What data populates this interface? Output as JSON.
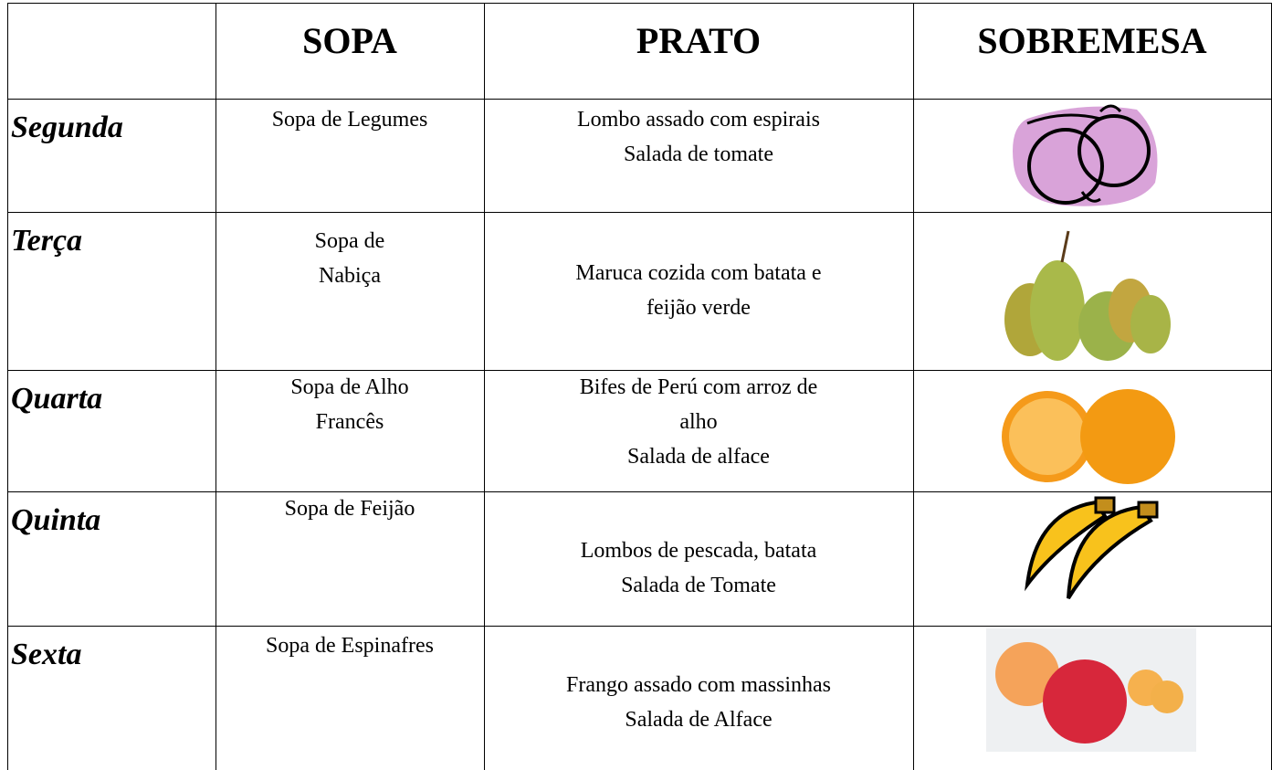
{
  "header": {
    "columns": [
      "SOPA",
      "PRATO",
      "SOBREMESA"
    ]
  },
  "rows": [
    {
      "day": "Segunda",
      "sopa": [
        "Sopa de Legumes"
      ],
      "prato": [
        "Lombo assado com espirais",
        "Salada de tomate"
      ]
    },
    {
      "day": "Terça",
      "sopa": [
        "Sopa de",
        "Nabiça"
      ],
      "prato": [
        "Maruca cozida com batata e",
        "feijão verde"
      ]
    },
    {
      "day": "Quarta",
      "sopa": [
        "Sopa de Alho",
        "Francês"
      ],
      "prato": [
        "Bifes de Perú com arroz de",
        "alho",
        "Salada de alface"
      ]
    },
    {
      "day": "Quinta",
      "sopa": [
        "Sopa de Feijão"
      ],
      "prato": [
        "Lombos de pescada, batata",
        "Salada de Tomate"
      ]
    },
    {
      "day": "Sexta",
      "sopa": [
        "Sopa de Espinafres"
      ],
      "prato": [
        "Frango assado com massinhas",
        "Salada de Alface"
      ]
    }
  ]
}
